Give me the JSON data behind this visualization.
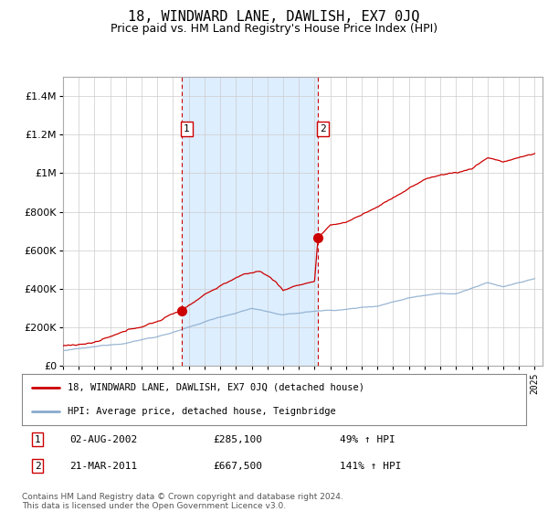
{
  "title": "18, WINDWARD LANE, DAWLISH, EX7 0JQ",
  "subtitle": "Price paid vs. HM Land Registry's House Price Index (HPI)",
  "title_fontsize": 11,
  "subtitle_fontsize": 9,
  "background_color": "#ffffff",
  "plot_bg_color": "#ffffff",
  "shade_color": "#ddeeff",
  "grid_color": "#cccccc",
  "year_start": 1995,
  "year_end": 2025,
  "ylim": [
    0,
    1500000
  ],
  "yticks": [
    0,
    200000,
    400000,
    600000,
    800000,
    1000000,
    1200000,
    1400000
  ],
  "ytick_labels": [
    "£0",
    "£200K",
    "£400K",
    "£600K",
    "£800K",
    "£1M",
    "£1.2M",
    "£1.4M"
  ],
  "red_line_label": "18, WINDWARD LANE, DAWLISH, EX7 0JQ (detached house)",
  "blue_line_label": "HPI: Average price, detached house, Teignbridge",
  "sale1_year": 2002.58,
  "sale1_price": 285100,
  "sale1_label": "1",
  "sale2_year": 2011.22,
  "sale2_price": 667500,
  "sale2_label": "2",
  "annotation1_date": "02-AUG-2002",
  "annotation1_price": "£285,100",
  "annotation1_pct": "49% ↑ HPI",
  "annotation2_date": "21-MAR-2011",
  "annotation2_price": "£667,500",
  "annotation2_pct": "141% ↑ HPI",
  "footer": "Contains HM Land Registry data © Crown copyright and database right 2024.\nThis data is licensed under the Open Government Licence v3.0.",
  "red_color": "#cc0000",
  "blue_color": "#88aacc",
  "marker_color": "#cc0000",
  "vline_color": "#cc0000"
}
